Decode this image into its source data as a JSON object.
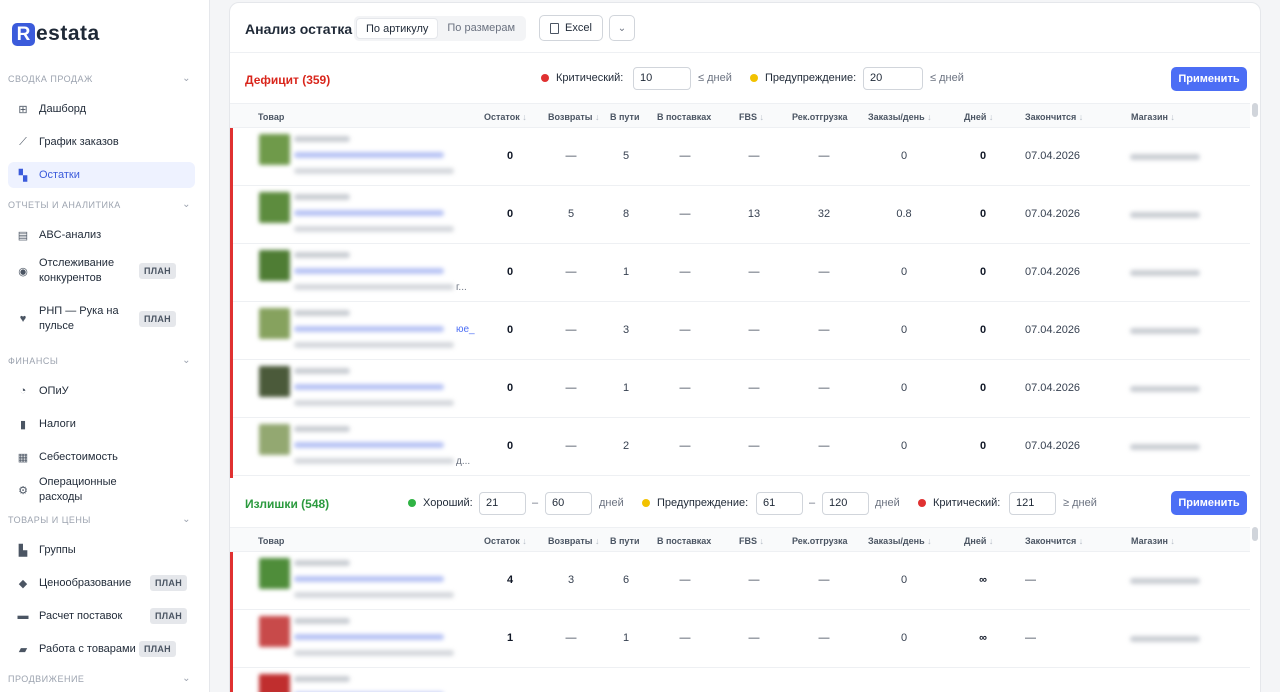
{
  "brand": {
    "mark": "R",
    "text": "estata"
  },
  "sidebar": {
    "sections": [
      {
        "label": "СВОДКА ПРОДАЖ",
        "items": [
          {
            "label": "Дашборд",
            "icon": "grid-icon"
          },
          {
            "label": "График заказов",
            "icon": "line-chart-icon"
          },
          {
            "label": "Остатки",
            "icon": "boxes-icon",
            "active": true
          }
        ]
      },
      {
        "label": "ОТЧЕТЫ И АНАЛИТИКА",
        "items": [
          {
            "label": "ABC-анализ",
            "icon": "bar-chart-icon"
          },
          {
            "label": "Отслеживание конкурентов",
            "icon": "eye-icon",
            "badge": "ПЛАН"
          },
          {
            "label": "РНП — Рука на пульсе",
            "icon": "heart-pulse-icon",
            "badge": "ПЛАН"
          }
        ]
      },
      {
        "label": "ФИНАНСЫ",
        "items": [
          {
            "label": "ОПиУ",
            "icon": "pie-chart-icon"
          },
          {
            "label": "Налоги",
            "icon": "document-icon"
          },
          {
            "label": "Себестоимость",
            "icon": "calculator-icon"
          },
          {
            "label": "Операционные расходы",
            "icon": "settings-icon"
          }
        ]
      },
      {
        "label": "ТОВАРЫ И ЦЕНЫ",
        "items": [
          {
            "label": "Группы",
            "icon": "layers-icon"
          },
          {
            "label": "Ценообразование",
            "icon": "tag-icon",
            "badge": "ПЛАН"
          },
          {
            "label": "Расчет поставок",
            "icon": "truck-icon",
            "badge": "ПЛАН"
          },
          {
            "label": "Работа с товарами",
            "icon": "briefcase-icon",
            "badge": "ПЛАН"
          }
        ]
      },
      {
        "label": "ПРОДВИЖЕНИЕ",
        "items": []
      }
    ]
  },
  "header": {
    "title": "Анализ остатка",
    "tabs": [
      "По артикулу",
      "По размерам"
    ],
    "excel_label": "Excel",
    "more_icon": "chevron-down-icon"
  },
  "deficit": {
    "title": "Дефицит (359)",
    "critical_label": "Критический:",
    "critical_value": "10",
    "critical_unit": "≤ дней",
    "warning_label": "Предупреждение:",
    "warning_value": "20",
    "warning_unit": "≤ дней",
    "apply_label": "Применить"
  },
  "surplus": {
    "title": "Излишки (548)",
    "good_label": "Хороший:",
    "good_from": "21",
    "good_to": "60",
    "good_unit": "дней",
    "warning_label": "Предупреждение:",
    "warning_from": "61",
    "warning_to": "120",
    "warning_unit": "дней",
    "critical_label": "Критический:",
    "critical_value": "121",
    "critical_unit": "≥ дней",
    "dash": "–",
    "apply_label": "Применить"
  },
  "columns": [
    "Товар",
    "Остаток",
    "Возвраты",
    "В пути",
    "В поставках",
    "FBS",
    "Рек.отгрузка",
    "Заказы/день",
    "Дней",
    "Закончится",
    "Магазин"
  ],
  "deficit_rows": [
    {
      "stock": "0",
      "returns": "—",
      "transit": "5",
      "supply": "—",
      "fbs": "—",
      "rec": "—",
      "orders": "0",
      "days": "0",
      "ends": "07.04.2026",
      "thumb": "#6f9a4a",
      "hint": ""
    },
    {
      "stock": "0",
      "returns": "5",
      "transit": "8",
      "supply": "—",
      "fbs": "13",
      "rec": "32",
      "orders": "0.8",
      "days": "0",
      "ends": "07.04.2026",
      "thumb": "#5d8c3e",
      "hint": ""
    },
    {
      "stock": "0",
      "returns": "—",
      "transit": "1",
      "supply": "—",
      "fbs": "—",
      "rec": "—",
      "orders": "0",
      "days": "0",
      "ends": "07.04.2026",
      "thumb": "#4f7d34",
      "hint": "г..."
    },
    {
      "stock": "0",
      "returns": "—",
      "transit": "3",
      "supply": "—",
      "fbs": "—",
      "rec": "—",
      "orders": "0",
      "days": "0",
      "ends": "07.04.2026",
      "thumb": "#86a25e",
      "hint": "юе_"
    },
    {
      "stock": "0",
      "returns": "—",
      "transit": "1",
      "supply": "—",
      "fbs": "—",
      "rec": "—",
      "orders": "0",
      "days": "0",
      "ends": "07.04.2026",
      "thumb": "#4b5a3a",
      "hint": ""
    },
    {
      "stock": "0",
      "returns": "—",
      "transit": "2",
      "supply": "—",
      "fbs": "—",
      "rec": "—",
      "orders": "0",
      "days": "0",
      "ends": "07.04.2026",
      "thumb": "#93a871",
      "hint": "д..."
    }
  ],
  "surplus_rows": [
    {
      "stock": "4",
      "returns": "3",
      "transit": "6",
      "supply": "—",
      "fbs": "—",
      "rec": "—",
      "orders": "0",
      "days": "∞",
      "ends": "—",
      "thumb": "#4f8d3a"
    },
    {
      "stock": "1",
      "returns": "—",
      "transit": "1",
      "supply": "—",
      "fbs": "—",
      "rec": "—",
      "orders": "0",
      "days": "∞",
      "ends": "—",
      "thumb": "#c84a4a"
    },
    {
      "stock": "",
      "returns": "",
      "transit": "",
      "supply": "",
      "fbs": "",
      "rec": "",
      "orders": "",
      "days": "",
      "ends": "",
      "thumb": "#c02e2e"
    }
  ],
  "colors": {
    "accent": "#4c6ef5",
    "critical": "#e03131",
    "warning": "#f2c200",
    "good": "#2fb344",
    "deficit_title": "#d9261c",
    "surplus_title": "#2b9a3e"
  }
}
